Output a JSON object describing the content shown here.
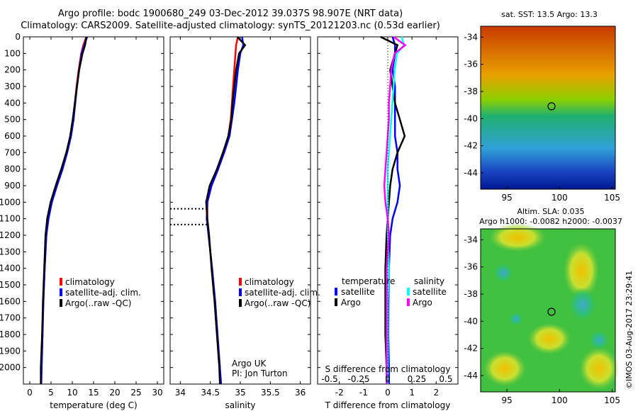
{
  "title_line1": "Argo profile: bodc 1900680_249 03-Dec-2012 39.037S 98.907E (NRT data)",
  "title_line2": "Climatology: CARS2009. Satellite-adjusted climatology: synTS_20121203.nc (0.53d earlier)",
  "footer_credit": "©IMOS 03-Aug-2017 23:29:41",
  "colors": {
    "climatology": "#ff0000",
    "satellite": "#0000ff",
    "argo": "#000000",
    "sal_satellite": "#00ffff",
    "sal_argo": "#ff00ff"
  },
  "legend_profile": [
    "climatology",
    "satellite-adj. clim.",
    "Argo(..raw -QC)"
  ],
  "legend_diff": {
    "temperature_header": "temperature",
    "salinity_header": "salinity",
    "items": [
      "satellite",
      "Argo",
      "satellite",
      "Argo"
    ]
  },
  "diff_labels": {
    "s_title": "S difference from climatology",
    "t_title": "T difference from climatology"
  },
  "pi_text": [
    "Argo UK",
    "PI: Jon Turton"
  ],
  "sst_panel": {
    "title": "sat. SST: 13.5  Argo: 13.3",
    "lat_ticks": [
      "-34",
      "-36",
      "-38",
      "-40",
      "-42",
      "-44"
    ],
    "lon_ticks": [
      "95",
      "100",
      "105"
    ]
  },
  "sla_panel": {
    "title_line1": "Altim. SLA: 0.035",
    "title_line2": "Argo h1000: -0.0082 h2000: -0.0037",
    "lat_ticks": [
      "-34",
      "-36",
      "-38",
      "-40",
      "-42",
      "-44"
    ],
    "lon_ticks": [
      "95",
      "100",
      "105"
    ]
  },
  "chart_data": [
    {
      "type": "line",
      "xlabel": "temperature (deg C)",
      "ylabel": "",
      "xlim": [
        -1.5,
        31.5
      ],
      "ylim": [
        2100,
        0
      ],
      "x_ticks": [
        "0",
        "5",
        "10",
        "15",
        "20",
        "25",
        "30"
      ],
      "y_ticks": [
        "0",
        "100",
        "200",
        "300",
        "400",
        "500",
        "600",
        "700",
        "800",
        "900",
        "1000",
        "1100",
        "1200",
        "1300",
        "1400",
        "1500",
        "1600",
        "1700",
        "1800",
        "1900",
        "2000"
      ],
      "series": [
        {
          "name": "climatology",
          "depth": [
            0,
            50,
            100,
            200,
            300,
            400,
            500,
            600,
            700,
            800,
            900,
            1000,
            1100,
            1200,
            1400,
            1600,
            1800,
            2000,
            2100
          ],
          "values": [
            13.3,
            12.6,
            12.1,
            11.5,
            11.0,
            10.6,
            10.2,
            9.6,
            8.7,
            7.6,
            6.3,
            5.1,
            4.3,
            3.9,
            3.5,
            3.2,
            3.0,
            2.7,
            2.6
          ]
        },
        {
          "name": "satellite-adj. clim.",
          "depth": [
            0,
            50,
            100,
            200,
            300,
            400,
            500,
            600,
            700,
            800,
            900,
            1000,
            1100,
            1200,
            1400,
            1600,
            1800,
            2000,
            2100
          ],
          "values": [
            13.5,
            12.8,
            12.2,
            11.6,
            11.1,
            10.7,
            10.3,
            9.7,
            8.8,
            7.7,
            6.4,
            5.2,
            4.4,
            3.9,
            3.5,
            3.2,
            3.0,
            2.8,
            2.7
          ]
        },
        {
          "name": "Argo(..raw -QC)",
          "depth": [
            0,
            50,
            100,
            200,
            300,
            400,
            500,
            600,
            700,
            800,
            900,
            1000,
            1100,
            1200,
            1400,
            1600,
            1800,
            2000,
            2100
          ],
          "values": [
            13.3,
            13.0,
            12.4,
            11.6,
            11.1,
            10.6,
            10.1,
            9.5,
            8.6,
            7.4,
            6.1,
            4.9,
            4.1,
            3.7,
            3.4,
            3.1,
            2.9,
            2.6,
            2.6
          ]
        }
      ]
    },
    {
      "type": "line",
      "xlabel": "salinity",
      "ylabel": "",
      "xlim": [
        33.83,
        36.17
      ],
      "ylim": [
        2100,
        0
      ],
      "x_ticks": [
        "34",
        "34.5",
        "35",
        "35.5",
        "36"
      ],
      "series": [
        {
          "name": "climatology",
          "depth": [
            0,
            50,
            100,
            200,
            300,
            400,
            500,
            600,
            700,
            800,
            900,
            1000,
            1100,
            1200,
            1400,
            1600,
            1800,
            2000,
            2100
          ],
          "values": [
            34.96,
            34.93,
            34.92,
            34.9,
            34.88,
            34.86,
            34.84,
            34.8,
            34.72,
            34.63,
            34.52,
            34.45,
            34.45,
            34.47,
            34.53,
            34.58,
            34.62,
            34.66,
            34.67
          ]
        },
        {
          "name": "satellite-adj. clim.",
          "depth": [
            0,
            50,
            100,
            200,
            300,
            400,
            500,
            600,
            700,
            800,
            900,
            1000,
            1100,
            1200,
            1400,
            1600,
            1800,
            2000,
            2100
          ],
          "values": [
            35.03,
            35.05,
            35.0,
            34.96,
            34.93,
            34.9,
            34.86,
            34.82,
            34.73,
            34.63,
            34.52,
            34.45,
            34.44,
            34.47,
            34.53,
            34.58,
            34.62,
            34.66,
            34.68
          ]
        },
        {
          "name": "Argo(..raw -QC)",
          "depth": [
            0,
            50,
            100,
            200,
            300,
            400,
            500,
            600,
            700,
            800,
            900,
            1000,
            1100,
            1200,
            1400,
            1600,
            1800,
            2000,
            2100
          ],
          "values": [
            34.95,
            35.08,
            34.98,
            34.93,
            34.9,
            34.87,
            34.85,
            34.8,
            34.71,
            34.61,
            34.49,
            34.43,
            34.45,
            34.48,
            34.52,
            34.57,
            34.61,
            34.65,
            34.66
          ]
        }
      ],
      "flagged_depths": [
        1040,
        1135
      ]
    },
    {
      "type": "line",
      "xlabel": "T difference from climatology",
      "ylabel": "",
      "xlim": [
        -2.9,
        2.9
      ],
      "ylim": [
        2100,
        0
      ],
      "x_ticks": [
        "-2",
        "-1",
        "0",
        "1",
        "2"
      ],
      "s_ticks": [
        "-0.5",
        "-0.25",
        "0",
        "0.25",
        "0.5"
      ],
      "series": [
        {
          "name": "temperature satellite",
          "depth": [
            0,
            50,
            100,
            200,
            300,
            400,
            500,
            600,
            700,
            800,
            900,
            1000,
            1100,
            1200,
            1400,
            1600,
            1800,
            2000,
            2100
          ],
          "values": [
            0.2,
            0.3,
            0.3,
            0.2,
            0.3,
            0.3,
            0.3,
            0.3,
            0.4,
            0.4,
            0.5,
            0.4,
            0.2,
            0.1,
            0.05,
            0.03,
            0.02,
            0.05,
            0.05
          ]
        },
        {
          "name": "temperature Argo",
          "depth": [
            0,
            50,
            100,
            200,
            300,
            400,
            500,
            600,
            700,
            800,
            900,
            1000,
            1100,
            1200,
            1400,
            1600,
            1800,
            2000,
            2100
          ],
          "values": [
            -0.3,
            0.4,
            0.3,
            0.1,
            0.2,
            0.3,
            0.5,
            0.7,
            0.4,
            0.2,
            0.1,
            0.05,
            0.0,
            -0.05,
            -0.1,
            -0.1,
            -0.1,
            -0.05,
            -0.05
          ]
        },
        {
          "name": "salinity satellite",
          "depth": [
            0,
            50,
            100,
            200,
            300,
            400,
            500,
            600,
            700,
            800,
            900,
            1000,
            1100,
            1200,
            1400,
            1600,
            1800,
            2000,
            2100
          ],
          "values": [
            0.12,
            0.14,
            0.08,
            0.06,
            0.05,
            0.04,
            0.03,
            0.02,
            0.01,
            0.0,
            0.0,
            0.0,
            0.0,
            0.0,
            0.01,
            0.0,
            0.0,
            0.0,
            0.0
          ]
        },
        {
          "name": "salinity Argo",
          "depth": [
            0,
            50,
            100,
            200,
            300,
            400,
            500,
            600,
            700,
            800,
            900,
            1000,
            1100,
            1200,
            1400,
            1600,
            1800,
            2000,
            2100
          ],
          "values": [
            0.05,
            0.15,
            0.06,
            0.03,
            0.02,
            0.01,
            0.01,
            0.0,
            -0.01,
            -0.02,
            -0.03,
            -0.02,
            0.0,
            0.01,
            -0.01,
            -0.01,
            -0.01,
            -0.01,
            -0.01
          ]
        }
      ]
    }
  ]
}
